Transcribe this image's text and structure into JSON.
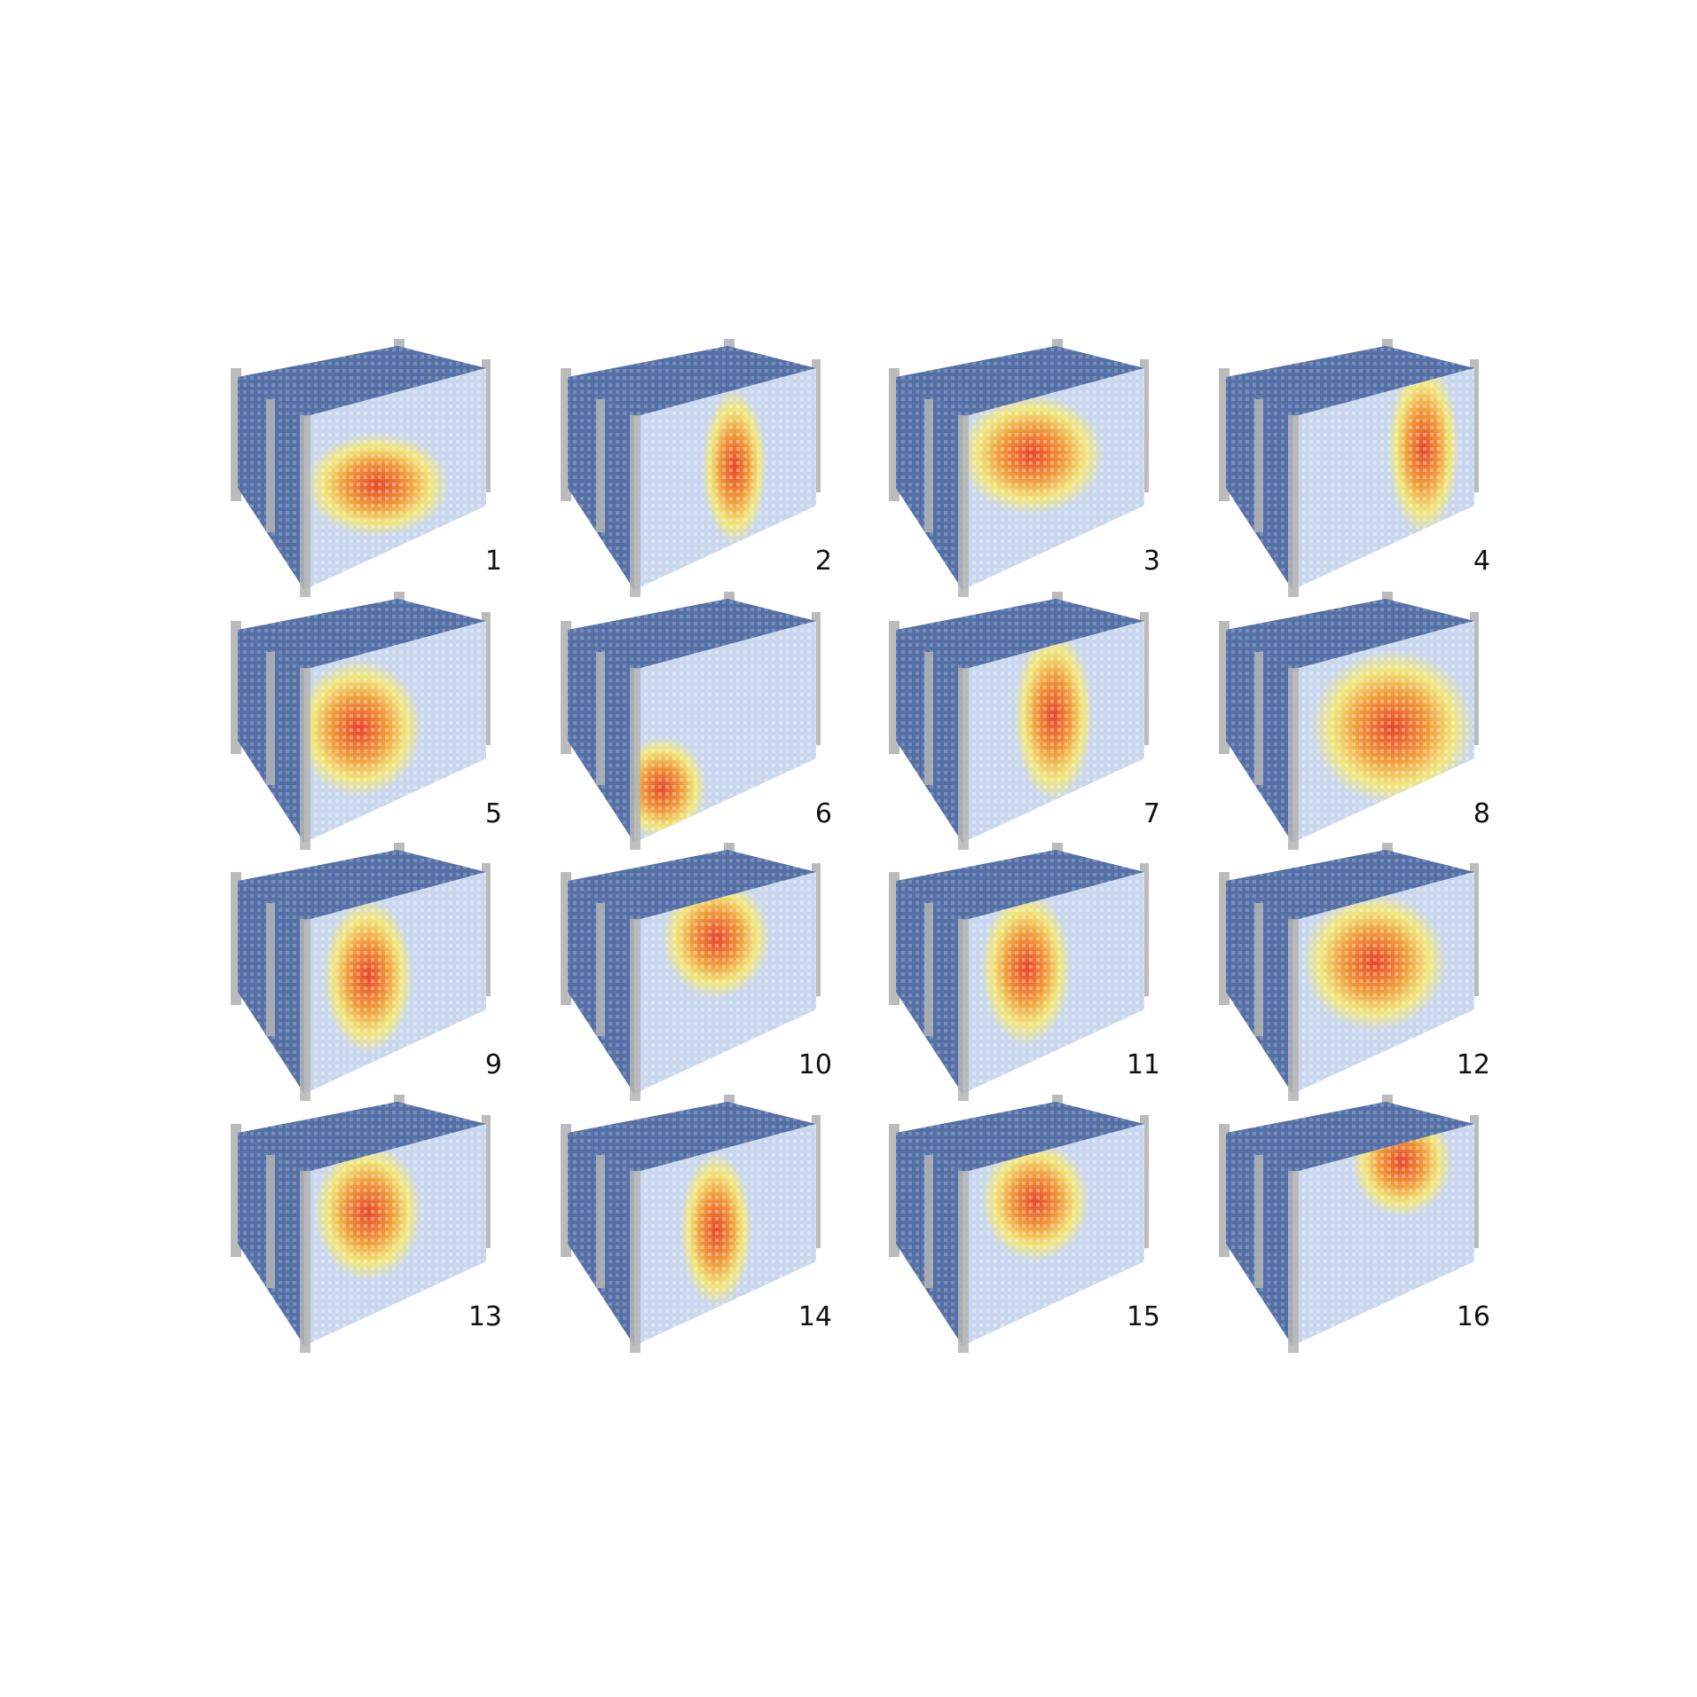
{
  "colors": {
    "cool": "#5470a6",
    "light": "#c8d6ee",
    "warm_yellow": "#f7ea6a",
    "warm_orange": "#f39a32",
    "hot_red": "#e8462a",
    "pillar": "#b4b4b4",
    "label": "#111111"
  },
  "panels": [
    {
      "label": "1",
      "hotspot": {
        "face": "front",
        "u": 0.4,
        "v": 0.55,
        "ru": 0.4,
        "rv": 0.3
      }
    },
    {
      "label": "2",
      "hotspot": {
        "face": "front",
        "u": 0.55,
        "v": 0.5,
        "ru": 0.18,
        "rv": 0.45
      }
    },
    {
      "label": "3",
      "hotspot": {
        "face": "front",
        "u": 0.38,
        "v": 0.35,
        "ru": 0.4,
        "rv": 0.35
      }
    },
    {
      "label": "4",
      "hotspot": {
        "face": "front",
        "u": 0.72,
        "v": 0.45,
        "ru": 0.2,
        "rv": 0.5
      }
    },
    {
      "label": "5",
      "hotspot": {
        "face": "front",
        "u": 0.3,
        "v": 0.45,
        "ru": 0.35,
        "rv": 0.4
      }
    },
    {
      "label": "6",
      "hotspot": {
        "face": "front",
        "u": 0.15,
        "v": 0.75,
        "ru": 0.25,
        "rv": 0.3
      }
    },
    {
      "label": "7",
      "hotspot": {
        "face": "front",
        "u": 0.5,
        "v": 0.45,
        "ru": 0.22,
        "rv": 0.5
      }
    },
    {
      "label": "8",
      "hotspot": {
        "face": "front",
        "u": 0.55,
        "v": 0.55,
        "ru": 0.45,
        "rv": 0.45
      }
    },
    {
      "label": "9",
      "hotspot": {
        "face": "front",
        "u": 0.35,
        "v": 0.45,
        "ru": 0.25,
        "rv": 0.45
      }
    },
    {
      "label": "10",
      "hotspot": {
        "face": "front",
        "u": 0.45,
        "v": 0.25,
        "ru": 0.3,
        "rv": 0.35
      }
    },
    {
      "label": "11",
      "hotspot": {
        "face": "front",
        "u": 0.35,
        "v": 0.4,
        "ru": 0.25,
        "rv": 0.45
      }
    },
    {
      "label": "12",
      "hotspot": {
        "face": "front",
        "u": 0.45,
        "v": 0.4,
        "ru": 0.4,
        "rv": 0.4
      }
    },
    {
      "label": "13",
      "hotspot": {
        "face": "front",
        "u": 0.35,
        "v": 0.35,
        "ru": 0.3,
        "rv": 0.4
      }
    },
    {
      "label": "14",
      "hotspot": {
        "face": "front",
        "u": 0.45,
        "v": 0.5,
        "ru": 0.2,
        "rv": 0.45
      }
    },
    {
      "label": "15",
      "hotspot": {
        "face": "front",
        "u": 0.4,
        "v": 0.3,
        "ru": 0.3,
        "rv": 0.35
      }
    },
    {
      "label": "16",
      "hotspot": {
        "face": "front",
        "u": 0.6,
        "v": 0.12,
        "ru": 0.28,
        "rv": 0.32
      }
    }
  ]
}
